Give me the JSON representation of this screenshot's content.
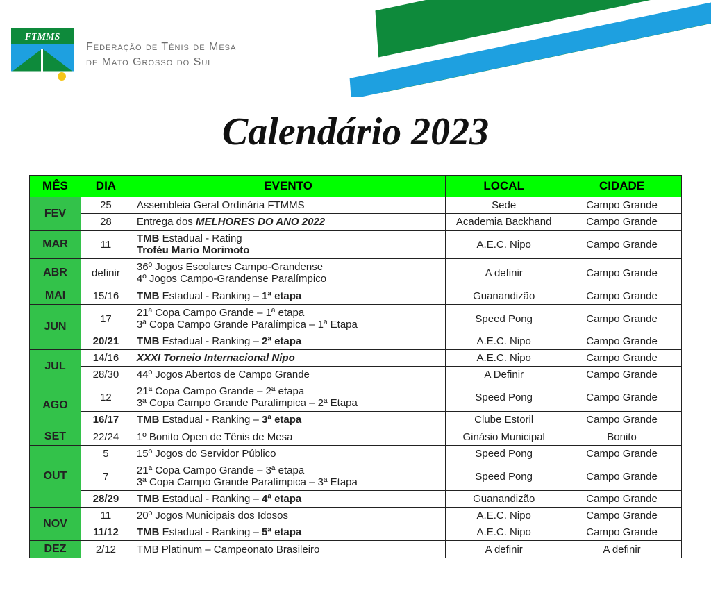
{
  "header": {
    "org_line1": "Federação de Tênis de Mesa",
    "org_line2": "de Mato Grosso do Sul",
    "logo_text": "FTMMS",
    "title": "Calendário 2023"
  },
  "colors": {
    "header_green": "#0e8a3b",
    "header_blue": "#1ea0e0",
    "th_bg": "#00ff00",
    "month_bg": "#33c24a",
    "border": "#222222"
  },
  "table": {
    "headers": {
      "mes": "MÊS",
      "dia": "DIA",
      "evento": "EVENTO",
      "local": "LOCAL",
      "cidade": "CIDADE"
    },
    "months": [
      {
        "label": "FEV",
        "rows": [
          {
            "dia": "25",
            "lines": [
              {
                "segs": [
                  {
                    "t": "Assembleia Geral Ordinária FTMMS"
                  }
                ]
              }
            ],
            "local": "Sede",
            "cidade": "Campo Grande"
          },
          {
            "dia": "28",
            "lines": [
              {
                "segs": [
                  {
                    "t": "Entrega dos "
                  },
                  {
                    "t": "MELHORES DO ANO 2022",
                    "bi": true
                  }
                ]
              }
            ],
            "local": "Academia Backhand",
            "cidade": "Campo Grande"
          }
        ]
      },
      {
        "label": "MAR",
        "rows": [
          {
            "dia": "11",
            "lines": [
              {
                "segs": [
                  {
                    "t": "TMB",
                    "b": true
                  },
                  {
                    "t": " Estadual - Rating"
                  }
                ]
              },
              {
                "segs": [
                  {
                    "t": "Troféu Mario Morimoto",
                    "b": true
                  }
                ]
              }
            ],
            "local": "A.E.C. Nipo",
            "cidade": "Campo Grande"
          }
        ]
      },
      {
        "label": "ABR",
        "rows": [
          {
            "dia": "definir",
            "lines": [
              {
                "segs": [
                  {
                    "t": "36º Jogos Escolares Campo-Grandense"
                  }
                ]
              },
              {
                "segs": [
                  {
                    "t": "4º Jogos Campo-Grandense Paralímpico"
                  }
                ]
              }
            ],
            "local": "A definir",
            "cidade": "Campo Grande"
          }
        ]
      },
      {
        "label": "MAI",
        "rows": [
          {
            "dia": "15/16",
            "lines": [
              {
                "segs": [
                  {
                    "t": "TMB",
                    "b": true
                  },
                  {
                    "t": " Estadual - Ranking – "
                  },
                  {
                    "t": "1ª etapa",
                    "b": true
                  }
                ]
              }
            ],
            "local": "Guanandizão",
            "cidade": "Campo Grande"
          }
        ]
      },
      {
        "label": "JUN",
        "rows": [
          {
            "dia": "17",
            "lines": [
              {
                "segs": [
                  {
                    "t": "21ª Copa Campo Grande – 1ª etapa"
                  }
                ]
              },
              {
                "segs": [
                  {
                    "t": "3ª Copa Campo Grande Paralímpica – 1ª Etapa"
                  }
                ]
              }
            ],
            "local": "Speed Pong",
            "cidade": "Campo Grande"
          },
          {
            "dia": "20/21",
            "dia_b": true,
            "lines": [
              {
                "segs": [
                  {
                    "t": "TMB",
                    "b": true
                  },
                  {
                    "t": " Estadual - Ranking – "
                  },
                  {
                    "t": "2ª etapa",
                    "b": true
                  }
                ]
              }
            ],
            "local": "A.E.C. Nipo",
            "cidade": "Campo Grande"
          }
        ]
      },
      {
        "label": "JUL",
        "rows": [
          {
            "dia": "14/16",
            "lines": [
              {
                "segs": [
                  {
                    "t": "XXXI Torneio Internacional Nipo",
                    "bi": true
                  }
                ]
              }
            ],
            "local": "A.E.C. Nipo",
            "cidade": "Campo Grande"
          },
          {
            "dia": "28/30",
            "lines": [
              {
                "segs": [
                  {
                    "t": "44º Jogos Abertos de Campo Grande"
                  }
                ]
              }
            ],
            "local": "A Definir",
            "cidade": "Campo Grande"
          }
        ]
      },
      {
        "label": "AGO",
        "rows": [
          {
            "dia": "12",
            "lines": [
              {
                "segs": [
                  {
                    "t": "21ª Copa Campo Grande – 2ª etapa"
                  }
                ]
              },
              {
                "segs": [
                  {
                    "t": "3ª Copa Campo Grande Paralímpica – 2ª Etapa"
                  }
                ]
              }
            ],
            "local": "Speed Pong",
            "cidade": "Campo Grande"
          },
          {
            "dia": "16/17",
            "dia_b": true,
            "lines": [
              {
                "segs": [
                  {
                    "t": "TMB",
                    "b": true
                  },
                  {
                    "t": " Estadual - Ranking – "
                  },
                  {
                    "t": "3ª etapa",
                    "b": true
                  }
                ]
              }
            ],
            "local": "Clube Estoril",
            "cidade": "Campo Grande"
          }
        ]
      },
      {
        "label": "SET",
        "rows": [
          {
            "dia": "22/24",
            "lines": [
              {
                "segs": [
                  {
                    "t": "1º Bonito Open de Tênis de Mesa"
                  }
                ]
              }
            ],
            "local": "Ginásio Municipal",
            "cidade": "Bonito"
          }
        ]
      },
      {
        "label": "OUT",
        "rows": [
          {
            "dia": "5",
            "lines": [
              {
                "segs": [
                  {
                    "t": "15º Jogos do Servidor Público"
                  }
                ]
              }
            ],
            "local": "Speed Pong",
            "cidade": "Campo Grande"
          },
          {
            "dia": "7",
            "lines": [
              {
                "segs": [
                  {
                    "t": "21ª Copa Campo Grande – 3ª etapa"
                  }
                ]
              },
              {
                "segs": [
                  {
                    "t": "3ª Copa Campo Grande Paralímpica – 3ª Etapa"
                  }
                ]
              }
            ],
            "local": "Speed Pong",
            "cidade": "Campo Grande"
          },
          {
            "dia": "28/29",
            "dia_b": true,
            "lines": [
              {
                "segs": [
                  {
                    "t": "TMB",
                    "b": true
                  },
                  {
                    "t": " Estadual - Ranking – "
                  },
                  {
                    "t": "4ª etapa",
                    "b": true
                  }
                ]
              }
            ],
            "local": "Guanandizão",
            "cidade": "Campo Grande"
          }
        ]
      },
      {
        "label": "NOV",
        "rows": [
          {
            "dia": "11",
            "lines": [
              {
                "segs": [
                  {
                    "t": "20º Jogos Municipais dos Idosos"
                  }
                ]
              }
            ],
            "local": "A.E.C. Nipo",
            "cidade": "Campo Grande"
          },
          {
            "dia": "11/12",
            "dia_b": true,
            "lines": [
              {
                "segs": [
                  {
                    "t": "TMB",
                    "b": true
                  },
                  {
                    "t": " Estadual - Ranking – "
                  },
                  {
                    "t": "5ª etapa",
                    "b": true
                  }
                ]
              }
            ],
            "local": "A.E.C. Nipo",
            "cidade": "Campo Grande"
          }
        ]
      },
      {
        "label": "DEZ",
        "rows": [
          {
            "dia": "2/12",
            "lines": [
              {
                "segs": [
                  {
                    "t": "TMB Platinum – Campeonato Brasileiro"
                  }
                ]
              }
            ],
            "local": "A definir",
            "cidade": "A definir"
          }
        ]
      }
    ]
  }
}
